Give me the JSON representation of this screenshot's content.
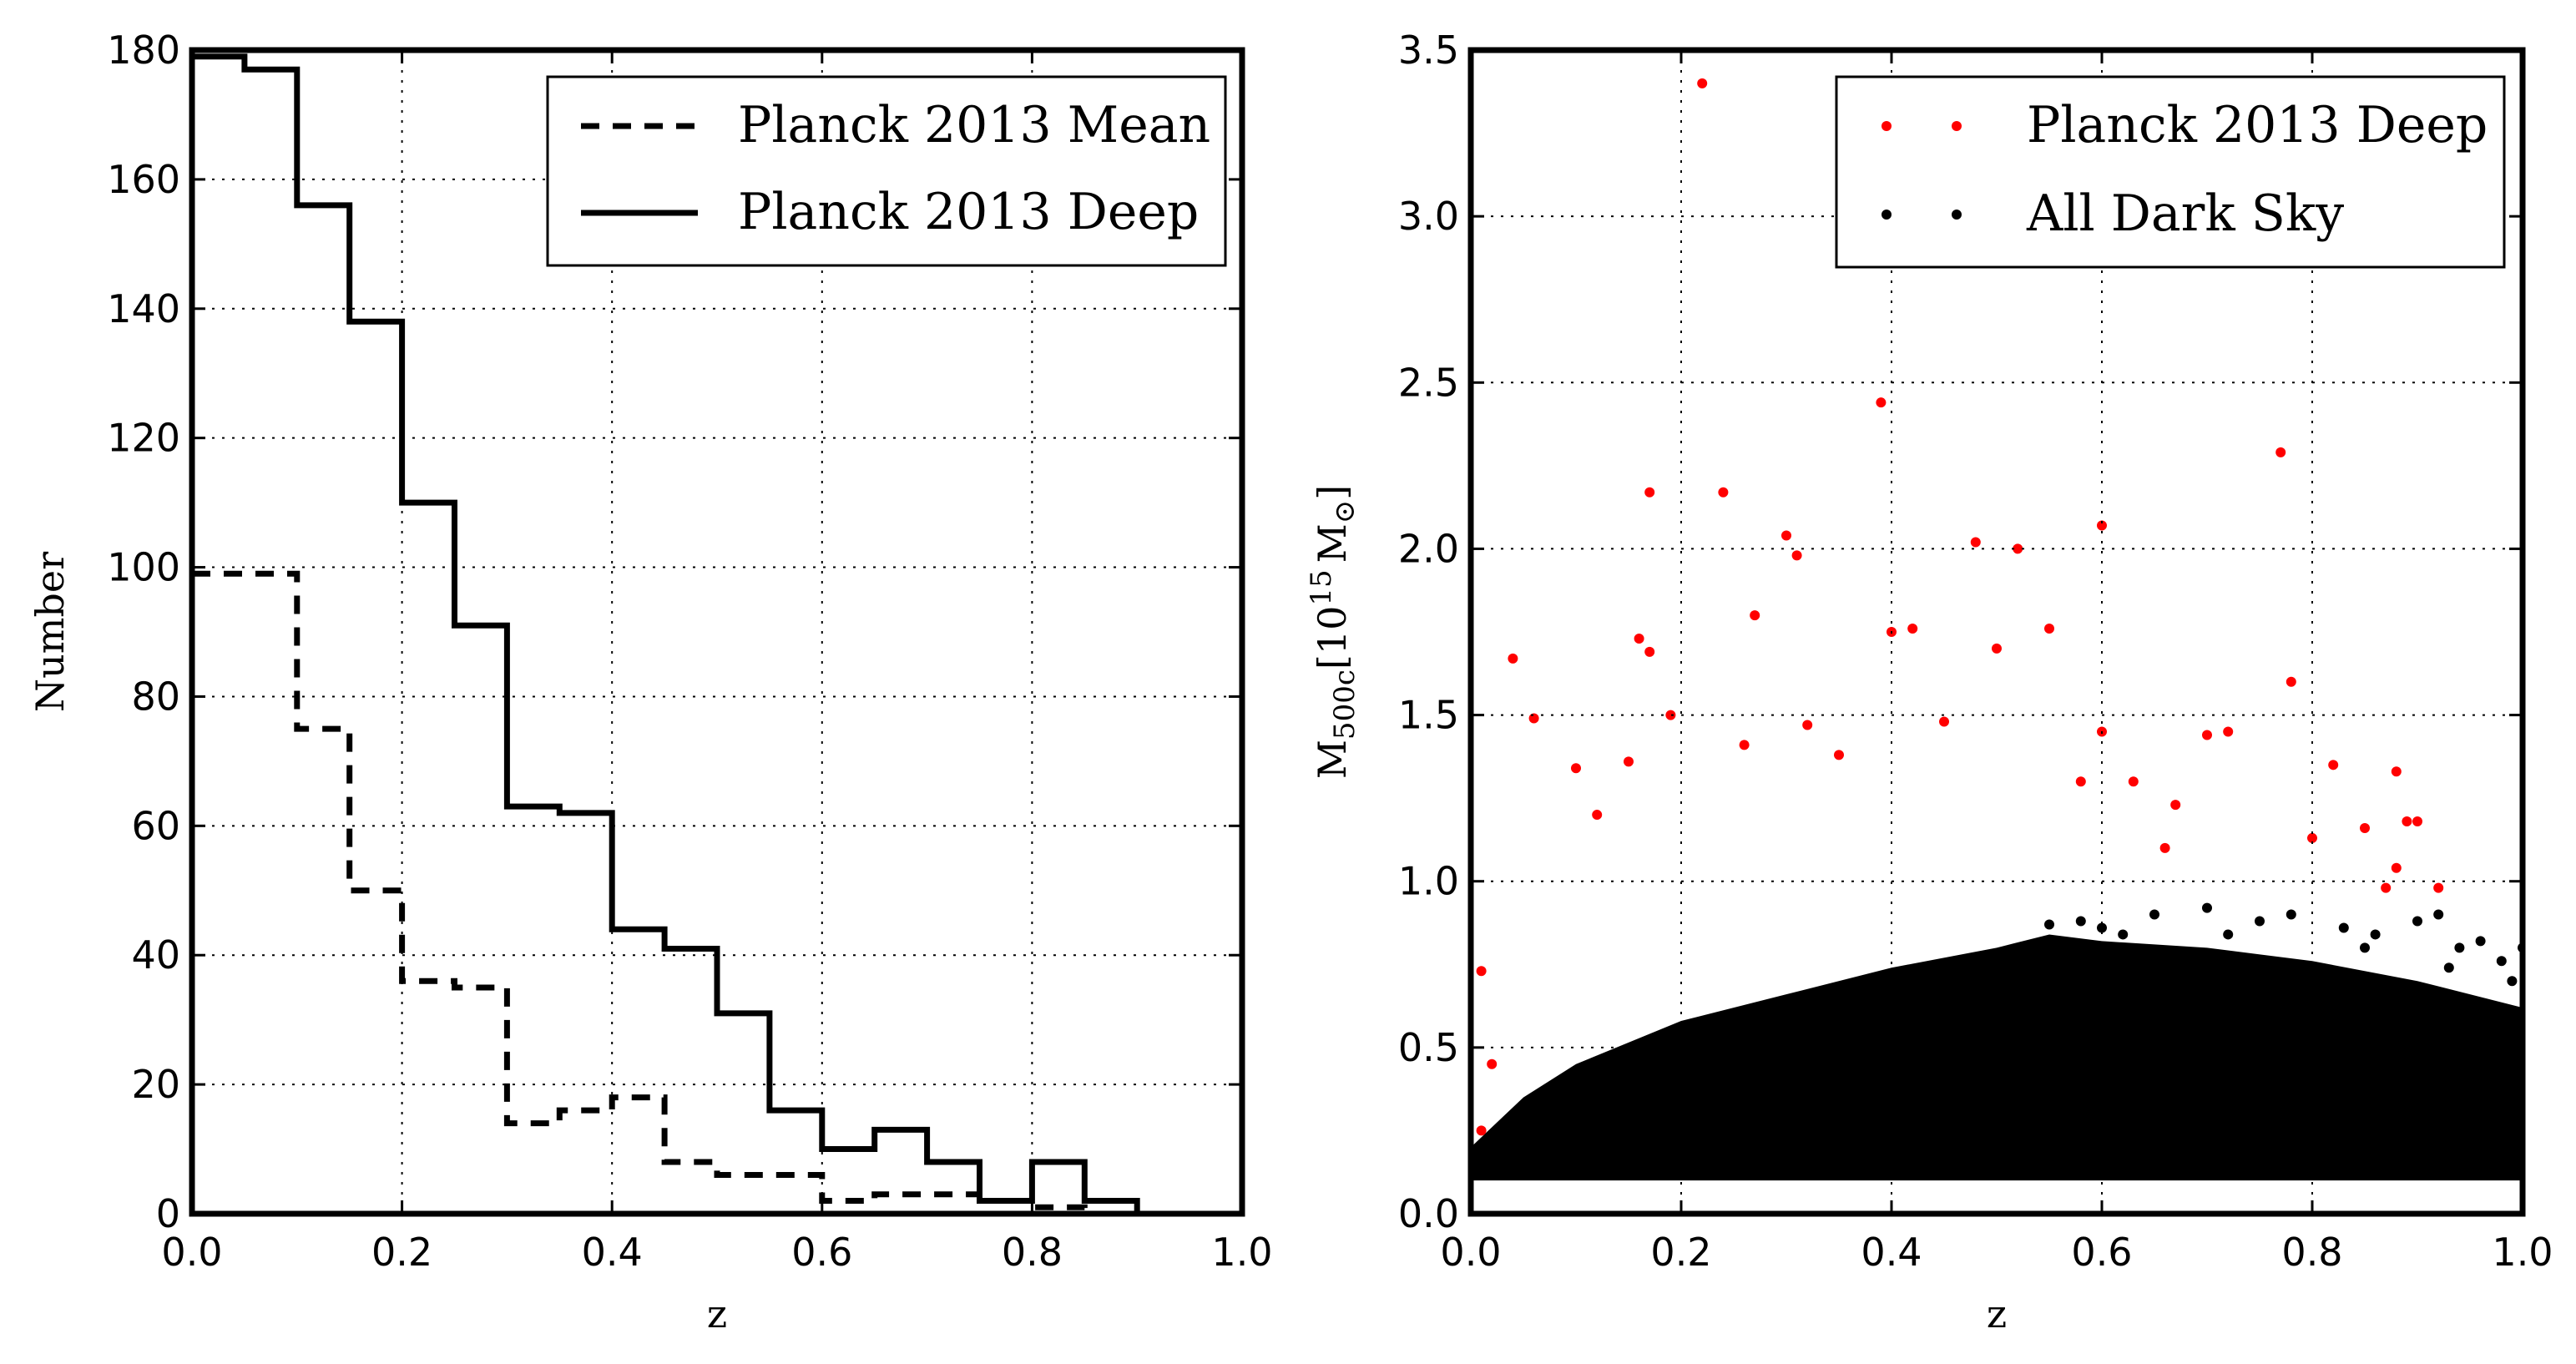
{
  "chart_data": [
    {
      "type": "histogram-step",
      "xlabel": "z",
      "ylabel": "Number",
      "xlim": [
        0.0,
        1.0
      ],
      "ylim": [
        0,
        180
      ],
      "grid": true,
      "legend_position": "top-right",
      "xticks": [
        "0.0",
        "0.2",
        "0.4",
        "0.6",
        "0.8",
        "1.0"
      ],
      "yticks": [
        "0",
        "20",
        "40",
        "60",
        "80",
        "100",
        "120",
        "140",
        "160",
        "180"
      ],
      "bin_edges": [
        0.0,
        0.05,
        0.1,
        0.15,
        0.2,
        0.25,
        0.3,
        0.35,
        0.4,
        0.45,
        0.5,
        0.55,
        0.6,
        0.65,
        0.7,
        0.75,
        0.8,
        0.85,
        0.9,
        0.95,
        1.0
      ],
      "series": [
        {
          "name": "Planck 2013 Mean",
          "style": "dashed",
          "color": "#000000",
          "values": [
            99,
            99,
            75,
            50,
            36,
            35,
            14,
            16,
            18,
            8,
            6,
            6,
            2,
            3,
            3,
            0,
            1,
            0,
            0,
            0
          ]
        },
        {
          "name": "Planck 2013 Deep",
          "style": "solid",
          "color": "#000000",
          "values": [
            179,
            177,
            156,
            138,
            110,
            91,
            63,
            62,
            44,
            41,
            31,
            16,
            10,
            13,
            8,
            2,
            8,
            2,
            0,
            0
          ]
        }
      ]
    },
    {
      "type": "scatter",
      "xlabel": "z",
      "ylabel": "M500c[10^15 M☉]",
      "ylabel_main": "M",
      "ylabel_sub": "500c",
      "ylabel_bracket_open": "[10",
      "ylabel_exp": "15",
      "ylabel_unit": "M",
      "ylabel_unit_sub": "⊙",
      "ylabel_bracket_close": "]",
      "xlim": [
        0.0,
        1.0
      ],
      "ylim": [
        0.0,
        3.5
      ],
      "grid": true,
      "legend_position": "top-right",
      "xticks": [
        "0.0",
        "0.2",
        "0.4",
        "0.6",
        "0.8",
        "1.0"
      ],
      "yticks": [
        "0.0",
        "0.5",
        "1.0",
        "1.5",
        "2.0",
        "2.5",
        "3.0",
        "3.5"
      ],
      "series": [
        {
          "name": "Planck 2013 Deep",
          "color": "#ff0000",
          "points": [
            [
              0.22,
              3.4
            ],
            [
              0.39,
              2.44
            ],
            [
              0.77,
              2.29
            ],
            [
              0.17,
              2.17
            ],
            [
              0.24,
              2.17
            ],
            [
              0.6,
              2.07
            ],
            [
              0.3,
              2.04
            ],
            [
              0.31,
              1.98
            ],
            [
              0.48,
              2.02
            ],
            [
              0.52,
              2.0
            ],
            [
              0.27,
              1.8
            ],
            [
              0.16,
              1.73
            ],
            [
              0.17,
              1.69
            ],
            [
              0.04,
              1.67
            ],
            [
              0.42,
              1.76
            ],
            [
              0.4,
              1.75
            ],
            [
              0.55,
              1.76
            ],
            [
              0.5,
              1.7
            ],
            [
              0.78,
              1.6
            ],
            [
              0.06,
              1.49
            ],
            [
              0.1,
              1.34
            ],
            [
              0.15,
              1.36
            ],
            [
              0.19,
              1.5
            ],
            [
              0.32,
              1.47
            ],
            [
              0.45,
              1.48
            ],
            [
              0.6,
              1.45
            ],
            [
              0.7,
              1.44
            ],
            [
              0.72,
              1.45
            ],
            [
              0.82,
              1.35
            ],
            [
              0.88,
              1.33
            ],
            [
              0.89,
              1.18
            ],
            [
              0.9,
              1.18
            ],
            [
              0.85,
              1.16
            ],
            [
              0.8,
              1.13
            ],
            [
              0.88,
              1.04
            ],
            [
              0.92,
              0.98
            ],
            [
              0.87,
              0.98
            ],
            [
              0.67,
              1.23
            ],
            [
              0.63,
              1.3
            ],
            [
              0.01,
              0.73
            ],
            [
              0.02,
              0.45
            ],
            [
              0.01,
              0.25
            ],
            [
              0.35,
              1.38
            ],
            [
              0.26,
              1.41
            ],
            [
              0.12,
              1.2
            ],
            [
              0.58,
              1.3
            ],
            [
              0.66,
              1.1
            ]
          ]
        },
        {
          "name": "All Dark Sky",
          "color": "#000000",
          "envelope_lower": 0.1,
          "envelope_upper": [
            [
              0.0,
              0.2
            ],
            [
              0.05,
              0.35
            ],
            [
              0.1,
              0.45
            ],
            [
              0.2,
              0.58
            ],
            [
              0.3,
              0.66
            ],
            [
              0.4,
              0.74
            ],
            [
              0.5,
              0.8
            ],
            [
              0.55,
              0.84
            ],
            [
              0.6,
              0.82
            ],
            [
              0.7,
              0.8
            ],
            [
              0.8,
              0.76
            ],
            [
              0.9,
              0.7
            ],
            [
              1.0,
              0.62
            ]
          ],
          "points": [
            [
              0.55,
              0.87
            ],
            [
              0.6,
              0.86
            ],
            [
              0.65,
              0.9
            ],
            [
              0.7,
              0.92
            ],
            [
              0.75,
              0.88
            ],
            [
              0.78,
              0.9
            ],
            [
              0.83,
              0.86
            ],
            [
              0.86,
              0.84
            ],
            [
              0.9,
              0.88
            ],
            [
              0.92,
              0.9
            ],
            [
              0.94,
              0.8
            ],
            [
              0.96,
              0.82
            ],
            [
              0.98,
              0.76
            ],
            [
              1.0,
              0.8
            ],
            [
              0.85,
              0.8
            ],
            [
              0.72,
              0.84
            ],
            [
              0.62,
              0.84
            ],
            [
              0.58,
              0.88
            ],
            [
              0.93,
              0.74
            ],
            [
              0.99,
              0.7
            ]
          ]
        }
      ]
    }
  ]
}
